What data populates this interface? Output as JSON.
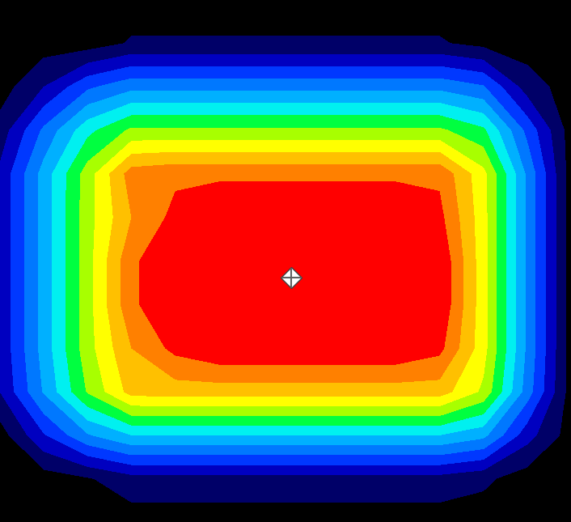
{
  "chart_data": {
    "type": "heatmap",
    "cells": [
      [
        0,
        0,
        0,
        0,
        0,
        0,
        0,
        0,
        0,
        0,
        0,
        0,
        0,
        0
      ],
      [
        0,
        0,
        0,
        0.6,
        0.6,
        0.6,
        0.6,
        0.6,
        0.6,
        0.6,
        0.6,
        0.2,
        0,
        0
      ],
      [
        0,
        1.5,
        3.3,
        4.2,
        4.2,
        4.2,
        4.2,
        4.2,
        4.2,
        4.2,
        4.2,
        3.6,
        1.0,
        0
      ],
      [
        0.9,
        3.7,
        6.2,
        7.7,
        7.7,
        7.7,
        7.7,
        7.7,
        7.7,
        7.7,
        7.7,
        6.7,
        3.2,
        0
      ],
      [
        1.7,
        4.9,
        8.0,
        11.0,
        11.3,
        11.3,
        11.3,
        11.3,
        11.3,
        11.3,
        11.3,
        8.8,
        4.3,
        0
      ],
      [
        1.7,
        4.9,
        8.1,
        10.5,
        11.8,
        12.4,
        12.4,
        12.4,
        12.4,
        12.4,
        11.8,
        8.9,
        4.3,
        0
      ],
      [
        1.7,
        4.9,
        8.1,
        11.3,
        12.4,
        12.4,
        12.4,
        12.4,
        12.4,
        12.4,
        12.4,
        8.9,
        4.3,
        0
      ],
      [
        1.7,
        4.9,
        8.1,
        11.3,
        12.4,
        12.4,
        12.4,
        12.4,
        12.4,
        12.4,
        12.4,
        8.9,
        4.3,
        0
      ],
      [
        1.7,
        4.9,
        8.1,
        10.5,
        11.8,
        12.4,
        12.4,
        12.4,
        12.4,
        12.4,
        11.8,
        8.9,
        4.3,
        0
      ],
      [
        1.5,
        4.6,
        7.6,
        9.9,
        10,
        10,
        10,
        10,
        10,
        10,
        10,
        8.3,
        4.0,
        0
      ],
      [
        0,
        2.4,
        4.4,
        5.5,
        5.5,
        5.5,
        5.5,
        5.5,
        5.5,
        5.5,
        5.5,
        4.8,
        1.9,
        0
      ],
      [
        0,
        0,
        0.4,
        1.1,
        1.1,
        1.1,
        1.1,
        1.1,
        1.1,
        1.1,
        1.1,
        0.7,
        0,
        0
      ],
      [
        0,
        0,
        0,
        0,
        0,
        0,
        0,
        0,
        0,
        0,
        0,
        0,
        0,
        0
      ]
    ],
    "colors": [
      "#000000",
      "#000068",
      "#0000c0",
      "#0038ff",
      "#0078ff",
      "#00b0ff",
      "#00f0f0",
      "#00ff40",
      "#a8ff00",
      "#ffff00",
      "#ffc000",
      "#ff8000",
      "#ff0000"
    ],
    "tick_labels": false
  }
}
